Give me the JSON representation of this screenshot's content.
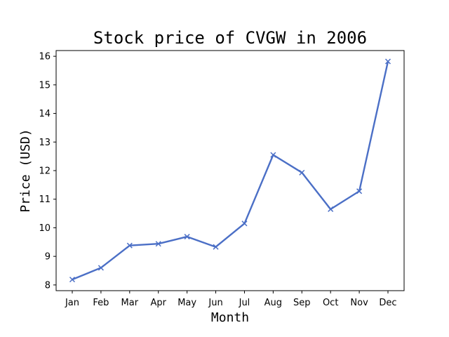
{
  "chart_data": {
    "type": "line",
    "title": "Stock price of CVGW in 2006",
    "xlabel": "Month",
    "ylabel": "Price (USD)",
    "categories": [
      "Jan",
      "Feb",
      "Mar",
      "Apr",
      "May",
      "Jun",
      "Jul",
      "Aug",
      "Sep",
      "Oct",
      "Nov",
      "Dec"
    ],
    "series": [
      {
        "values": [
          8.19,
          8.6,
          9.38,
          9.44,
          9.69,
          9.33,
          10.15,
          12.55,
          11.93,
          10.65,
          11.28,
          15.82
        ]
      }
    ],
    "ylim": [
      7.8,
      16.2
    ],
    "yticks": [
      8,
      9,
      10,
      11,
      12,
      13,
      14,
      15,
      16
    ],
    "marker": "x",
    "line_color": "#4b6fc6",
    "grid": false,
    "legend": "none"
  }
}
